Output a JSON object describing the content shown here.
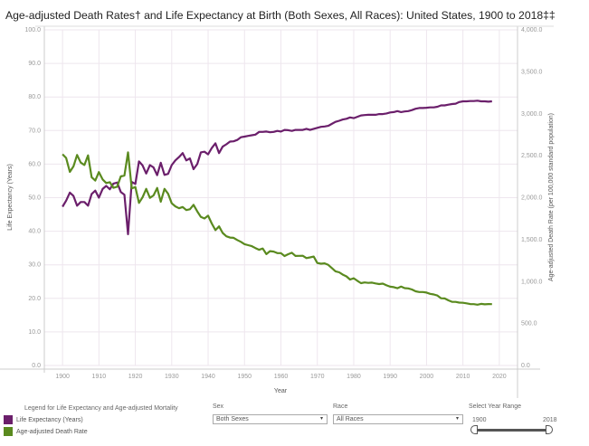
{
  "title": "Age-adjusted Death Rates† and Life Expectancy at Birth (Both Sexes, All Races): United States, 1900 to 2018‡‡",
  "chart_data": {
    "type": "line",
    "title": "Age-adjusted Death Rates† and Life Expectancy at Birth (Both Sexes, All Races): United States, 1900 to 2018‡‡",
    "xlabel": "Year",
    "ylabel": "Life Expectancy (Years)",
    "y2label": "Age-adjusted Death Rate (per 100,000 standard population)",
    "xlim": [
      1895,
      2025
    ],
    "ylim": [
      0,
      100
    ],
    "y2lim": [
      0,
      4000
    ],
    "x_ticks": [
      "1900",
      "1910",
      "1920",
      "1930",
      "1940",
      "1950",
      "1960",
      "1970",
      "1980",
      "1990",
      "2000",
      "2010",
      "2020"
    ],
    "y_ticks": [
      "0.0",
      "10.0",
      "20.0",
      "30.0",
      "40.0",
      "50.0",
      "60.0",
      "70.0",
      "80.0",
      "90.0",
      "100.0"
    ],
    "y2_ticks": [
      "0.0",
      "500.0",
      "1,000.0",
      "1,500.0",
      "2,000.0",
      "2,500.0",
      "3,000.0",
      "3,500.0",
      "4,000.0"
    ],
    "grid": true,
    "legend_position": "bottom-left",
    "x": [
      1900,
      1901,
      1902,
      1903,
      1904,
      1905,
      1906,
      1907,
      1908,
      1909,
      1910,
      1911,
      1912,
      1913,
      1914,
      1915,
      1916,
      1917,
      1918,
      1919,
      1920,
      1921,
      1922,
      1923,
      1924,
      1925,
      1926,
      1927,
      1928,
      1929,
      1930,
      1931,
      1932,
      1933,
      1934,
      1935,
      1936,
      1937,
      1938,
      1939,
      1940,
      1941,
      1942,
      1943,
      1944,
      1945,
      1946,
      1947,
      1948,
      1949,
      1950,
      1951,
      1952,
      1953,
      1954,
      1955,
      1956,
      1957,
      1958,
      1959,
      1960,
      1961,
      1962,
      1963,
      1964,
      1965,
      1966,
      1967,
      1968,
      1969,
      1970,
      1971,
      1972,
      1973,
      1974,
      1975,
      1976,
      1977,
      1978,
      1979,
      1980,
      1981,
      1982,
      1983,
      1984,
      1985,
      1986,
      1987,
      1988,
      1989,
      1990,
      1991,
      1992,
      1993,
      1994,
      1995,
      1996,
      1997,
      1998,
      1999,
      2000,
      2001,
      2002,
      2003,
      2004,
      2005,
      2006,
      2007,
      2008,
      2009,
      2010,
      2011,
      2012,
      2013,
      2014,
      2015,
      2016,
      2017,
      2018
    ],
    "series": [
      {
        "name": "Life Expectancy (Years)",
        "axis": "left",
        "color": "#6b1f6b",
        "values": [
          47.3,
          49.1,
          51.5,
          50.5,
          47.6,
          48.7,
          48.7,
          47.6,
          51.1,
          52.1,
          50.0,
          52.6,
          53.5,
          52.5,
          54.2,
          54.5,
          51.7,
          50.9,
          39.1,
          54.7,
          54.1,
          60.8,
          59.6,
          57.2,
          59.7,
          59.0,
          56.7,
          60.4,
          56.8,
          57.1,
          59.7,
          61.1,
          62.1,
          63.3,
          61.1,
          61.7,
          58.5,
          60.0,
          63.5,
          63.7,
          62.9,
          64.8,
          66.2,
          63.3,
          65.2,
          65.9,
          66.7,
          66.8,
          67.2,
          68.0,
          68.2,
          68.4,
          68.6,
          68.8,
          69.6,
          69.6,
          69.7,
          69.5,
          69.6,
          69.9,
          69.7,
          70.2,
          70.1,
          69.9,
          70.2,
          70.2,
          70.2,
          70.5,
          70.2,
          70.5,
          70.8,
          71.1,
          71.2,
          71.4,
          72.0,
          72.6,
          72.9,
          73.3,
          73.5,
          73.9,
          73.7,
          74.1,
          74.5,
          74.6,
          74.7,
          74.7,
          74.7,
          74.9,
          74.9,
          75.1,
          75.4,
          75.5,
          75.8,
          75.5,
          75.7,
          75.8,
          76.1,
          76.5,
          76.7,
          76.7,
          76.8,
          76.9,
          76.9,
          77.1,
          77.5,
          77.5,
          77.7,
          77.9,
          78.0,
          78.5,
          78.7,
          78.7,
          78.8,
          78.8,
          78.9,
          78.7,
          78.7,
          78.6,
          78.7
        ]
      },
      {
        "name": "Age-adjusted Death Rate",
        "axis": "right",
        "color": "#5a8a1f",
        "values": [
          2518,
          2473,
          2307,
          2373,
          2509,
          2418,
          2389,
          2505,
          2244,
          2204,
          2305,
          2218,
          2175,
          2184,
          2117,
          2130,
          2253,
          2264,
          2540,
          2111,
          2126,
          1937,
          2005,
          2105,
          1998,
          2027,
          2115,
          1951,
          2105,
          2046,
          1933,
          1896,
          1874,
          1889,
          1852,
          1862,
          1915,
          1837,
          1770,
          1752,
          1785,
          1692,
          1613,
          1658,
          1580,
          1540,
          1525,
          1521,
          1495,
          1474,
          1446,
          1434,
          1422,
          1399,
          1379,
          1394,
          1327,
          1363,
          1357,
          1339,
          1339,
          1305,
          1326,
          1343,
          1306,
          1307,
          1308,
          1280,
          1288,
          1298,
          1222,
          1213,
          1217,
          1199,
          1161,
          1122,
          1111,
          1082,
          1062,
          1024,
          1039,
          1009,
          981,
          990,
          984,
          988,
          978,
          970,
          976,
          955,
          939,
          934,
          921,
          940,
          922,
          919,
          906,
          884,
          875,
          875,
          869,
          854,
          846,
          833,
          801,
          799,
          776,
          759,
          758,
          749,
          747,
          741,
          732,
          731,
          725,
          734,
          729,
          732,
          731
        ]
      }
    ]
  },
  "legend": {
    "title": "Legend for Life Expectancy and Age-adjusted Mortality",
    "items": [
      {
        "label": "Life Expectancy (Years)",
        "color": "#6b1f6b"
      },
      {
        "label": "Age-adjusted Death Rate",
        "color": "#5a8a1f"
      }
    ]
  },
  "controls": {
    "sex_label": "Sex",
    "sex_value": "Both Sexes",
    "race_label": "Race",
    "race_value": "All Races",
    "range_label": "Select Year Range",
    "range_min": "1900",
    "range_max": "2018",
    "dropdown_arrow": "▾"
  }
}
